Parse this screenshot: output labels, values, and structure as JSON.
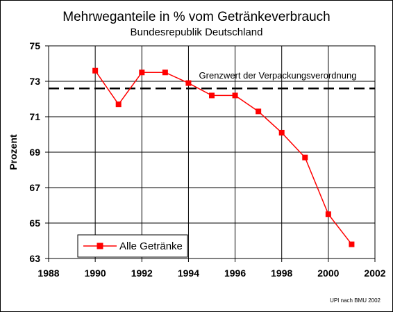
{
  "chart_data": {
    "type": "line",
    "title": "Mehrweganteile in % vom Getränkeverbrauch",
    "subtitle": "Bundesrepublik Deutschland",
    "xlabel": "",
    "ylabel": "Prozent",
    "xlim": [
      1988,
      2002
    ],
    "ylim": [
      63,
      75
    ],
    "x_ticks": [
      "1988",
      "1990",
      "1992",
      "1994",
      "1996",
      "1998",
      "2000",
      "2002"
    ],
    "y_ticks": [
      "63",
      "65",
      "67",
      "69",
      "71",
      "73",
      "75"
    ],
    "grid": true,
    "series": [
      {
        "name": "Alle Getränke",
        "color": "#ff0000",
        "x": [
          1990,
          1991,
          1992,
          1993,
          1994,
          1995,
          1996,
          1997,
          1998,
          1999,
          2000,
          2001
        ],
        "values": [
          73.6,
          71.7,
          73.5,
          73.5,
          72.9,
          72.2,
          72.2,
          71.3,
          70.1,
          68.7,
          65.5,
          63.8
        ]
      }
    ],
    "reference_line": {
      "label": "Grenzwert der Verpackungsverordnung",
      "value": 72.6
    },
    "legend_position": "bottom-left",
    "credit": "UPI nach BMU 2002"
  }
}
